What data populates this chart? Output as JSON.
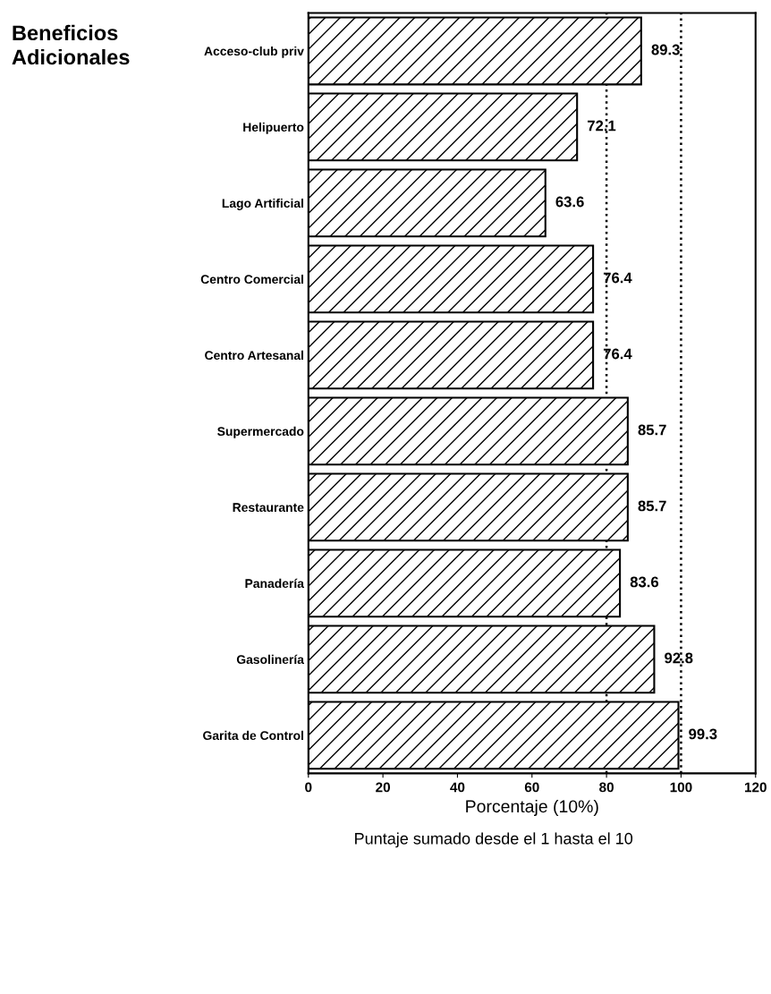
{
  "chart_data": {
    "type": "bar",
    "orientation": "horizontal",
    "title": "Beneficios\nAdicionales",
    "xlabel": "Porcentaje (10%)",
    "categories": [
      "Acceso-club priv",
      "Helipuerto",
      "Lago Artificial",
      "Centro Comercial",
      "Centro Artesanal",
      "Supermercado",
      "Restaurante",
      "Panadería",
      "Gasolinería",
      "Garita de Control"
    ],
    "values": [
      89.3,
      72.1,
      63.6,
      76.4,
      76.4,
      85.7,
      85.7,
      83.6,
      92.8,
      99.3
    ],
    "color": "#000000",
    "data_labels": true,
    "xlim": [
      0,
      120
    ],
    "xticks": [
      0,
      20,
      40,
      60,
      80,
      100,
      120
    ],
    "grid": false,
    "legend": false,
    "ref_lines": [
      {
        "axis": "x",
        "value": 80,
        "color": "#000000",
        "line_style": "dotted"
      },
      {
        "axis": "x",
        "value": 100,
        "color": "#000000",
        "line_style": "dotted"
      }
    ],
    "annotations": [
      "Puntaje sumado desde el 1 hasta el 10"
    ]
  }
}
